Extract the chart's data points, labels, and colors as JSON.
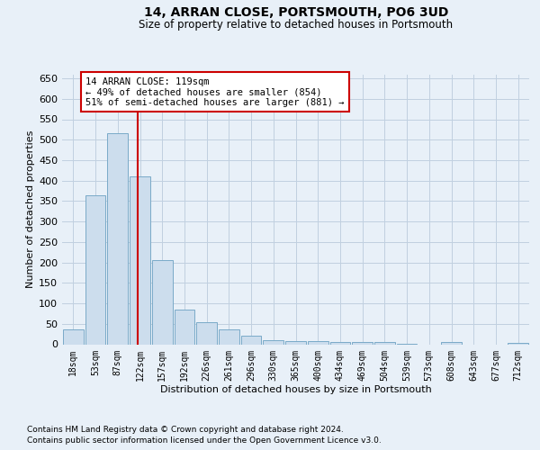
{
  "title": "14, ARRAN CLOSE, PORTSMOUTH, PO6 3UD",
  "subtitle": "Size of property relative to detached houses in Portsmouth",
  "xlabel": "Distribution of detached houses by size in Portsmouth",
  "ylabel": "Number of detached properties",
  "bar_labels": [
    "18sqm",
    "53sqm",
    "87sqm",
    "122sqm",
    "157sqm",
    "192sqm",
    "226sqm",
    "261sqm",
    "296sqm",
    "330sqm",
    "365sqm",
    "400sqm",
    "434sqm",
    "469sqm",
    "504sqm",
    "539sqm",
    "573sqm",
    "608sqm",
    "643sqm",
    "677sqm",
    "712sqm"
  ],
  "bar_values": [
    37,
    365,
    515,
    410,
    205,
    85,
    55,
    37,
    20,
    10,
    7,
    7,
    5,
    5,
    5,
    2,
    0,
    5,
    0,
    0,
    4
  ],
  "bar_color": "#ccdded",
  "bar_edge_color": "#7aaac8",
  "grid_color": "#c0d0e0",
  "background_color": "#e8f0f8",
  "vline_color": "#cc0000",
  "annotation_text": "14 ARRAN CLOSE: 119sqm\n← 49% of detached houses are smaller (854)\n51% of semi-detached houses are larger (881) →",
  "annotation_box_color": "#ffffff",
  "annotation_box_edge": "#cc0000",
  "ylim": [
    0,
    660
  ],
  "yticks": [
    0,
    50,
    100,
    150,
    200,
    250,
    300,
    350,
    400,
    450,
    500,
    550,
    600,
    650
  ],
  "footer_line1": "Contains HM Land Registry data © Crown copyright and database right 2024.",
  "footer_line2": "Contains public sector information licensed under the Open Government Licence v3.0."
}
